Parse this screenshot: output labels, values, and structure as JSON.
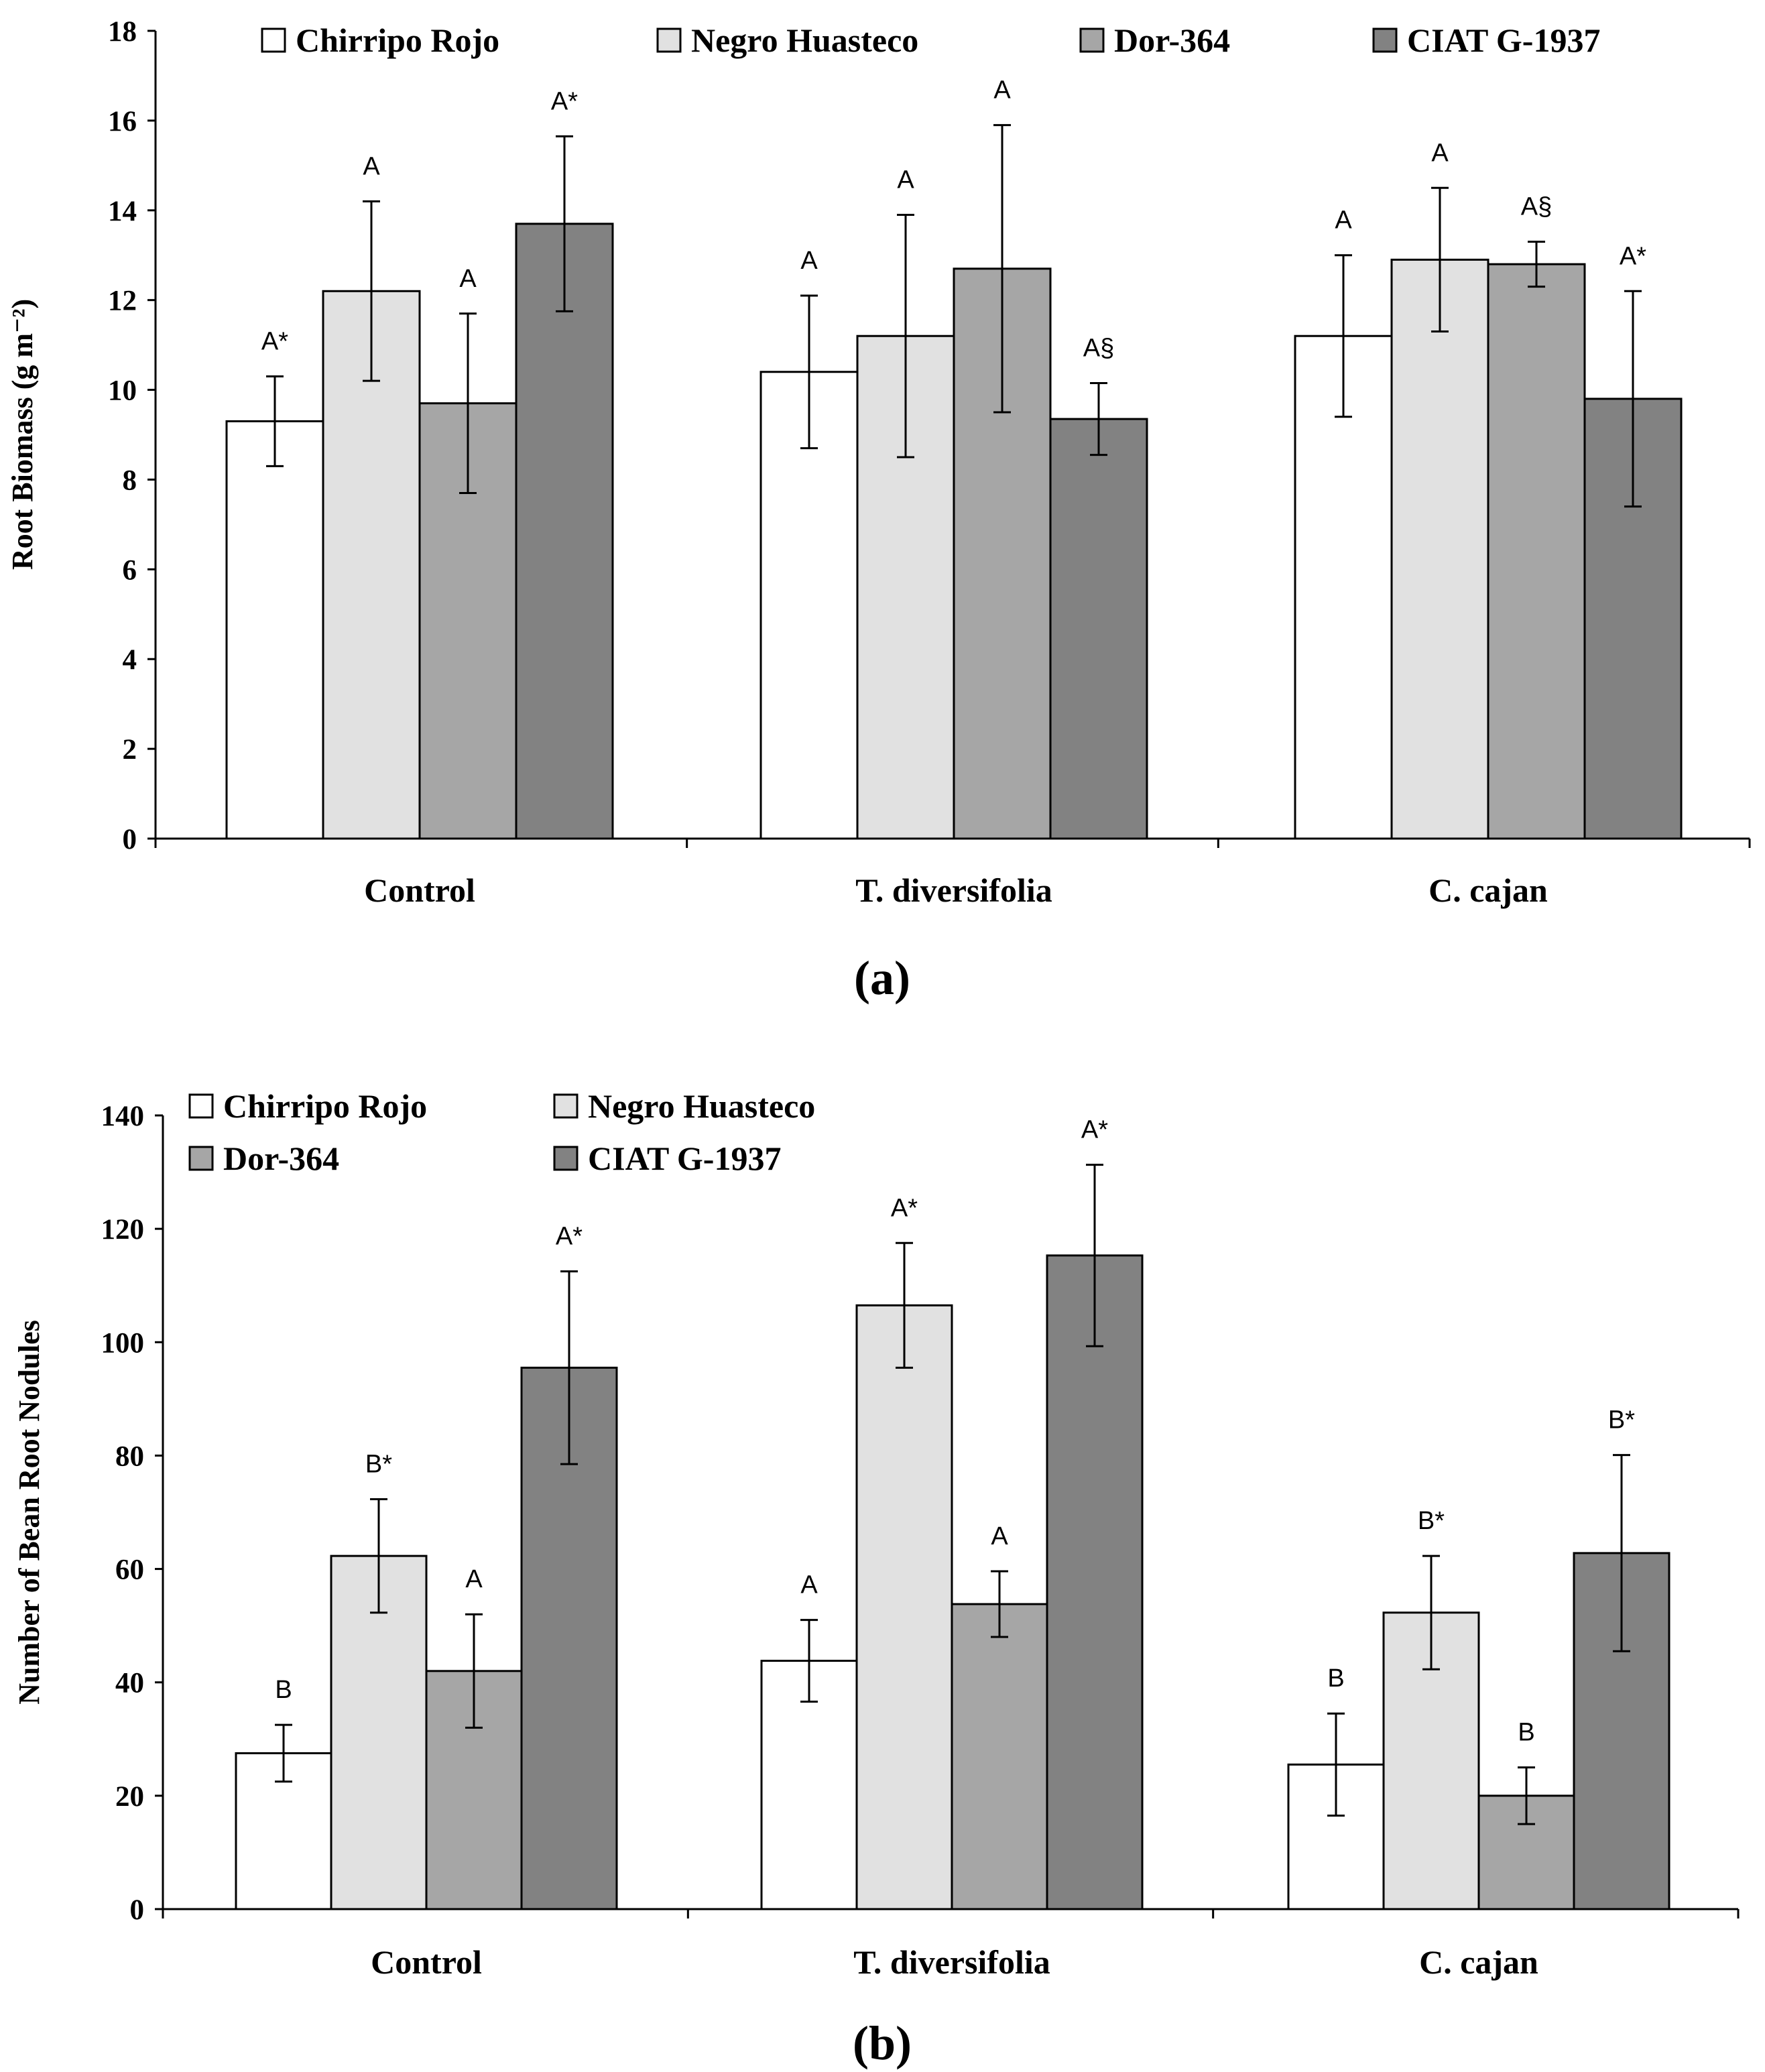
{
  "colors": {
    "Chirripo Rojo": "#ffffff",
    "Negro Huasteco": "#e1e1e1",
    "Dor-364": "#a6a6a6",
    "CIAT G-1937": "#828282"
  },
  "chart_data": [
    {
      "type": "bar",
      "panel_label": "(a)",
      "ylabel": "Root Biomass (g m⁻²)",
      "ylim": [
        0,
        18
      ],
      "yticks": [
        0,
        2,
        4,
        6,
        8,
        10,
        12,
        14,
        16,
        18
      ],
      "categories": [
        "Control",
        "T. diversifolia",
        "C. cajan"
      ],
      "legend_position": "top, single row",
      "series": [
        {
          "name": "Chirripo Rojo",
          "values": [
            9.3,
            10.4,
            11.2
          ],
          "errors": [
            1.0,
            1.7,
            1.8
          ],
          "labels": [
            "A*",
            "A",
            "A"
          ]
        },
        {
          "name": "Negro Huasteco",
          "values": [
            12.2,
            11.2,
            12.9
          ],
          "errors": [
            2.0,
            2.7,
            1.6
          ],
          "labels": [
            "A",
            "A",
            "A"
          ]
        },
        {
          "name": "Dor-364",
          "values": [
            9.7,
            12.7,
            12.8
          ],
          "errors": [
            2.0,
            3.2,
            0.5
          ],
          "labels": [
            "A",
            "A",
            "A§"
          ]
        },
        {
          "name": "CIAT G-1937",
          "values": [
            13.7,
            9.35,
            9.8
          ],
          "errors": [
            1.95,
            0.8,
            2.4
          ],
          "labels": [
            "A*",
            "A§",
            "A*"
          ]
        }
      ]
    },
    {
      "type": "bar",
      "panel_label": "(b)",
      "ylabel": "Number of Bean Root Nodules",
      "ylim": [
        0,
        140
      ],
      "yticks": [
        0,
        20,
        40,
        60,
        80,
        100,
        120,
        140
      ],
      "categories": [
        "Control",
        "T. diversifolia",
        "C. cajan"
      ],
      "legend_position": "top-left, two rows",
      "series": [
        {
          "name": "Chirripo Rojo",
          "values": [
            27.5,
            43.8,
            25.5
          ],
          "errors": [
            5.0,
            7.2,
            9.0
          ],
          "labels": [
            "B",
            "A",
            "B"
          ]
        },
        {
          "name": "Negro Huasteco",
          "values": [
            62.3,
            106.5,
            52.3
          ],
          "errors": [
            10.0,
            11.0,
            10.0
          ],
          "labels": [
            "B*",
            "A*",
            "B*"
          ]
        },
        {
          "name": "Dor-364",
          "values": [
            42.0,
            53.8,
            20.0
          ],
          "errors": [
            10.0,
            5.8,
            5.0
          ],
          "labels": [
            "A",
            "A",
            "B"
          ]
        },
        {
          "name": "CIAT G-1937",
          "values": [
            95.5,
            115.3,
            62.8
          ],
          "errors": [
            17.0,
            16.0,
            17.3
          ],
          "labels": [
            "A*",
            "A*",
            "B*"
          ]
        }
      ]
    }
  ]
}
